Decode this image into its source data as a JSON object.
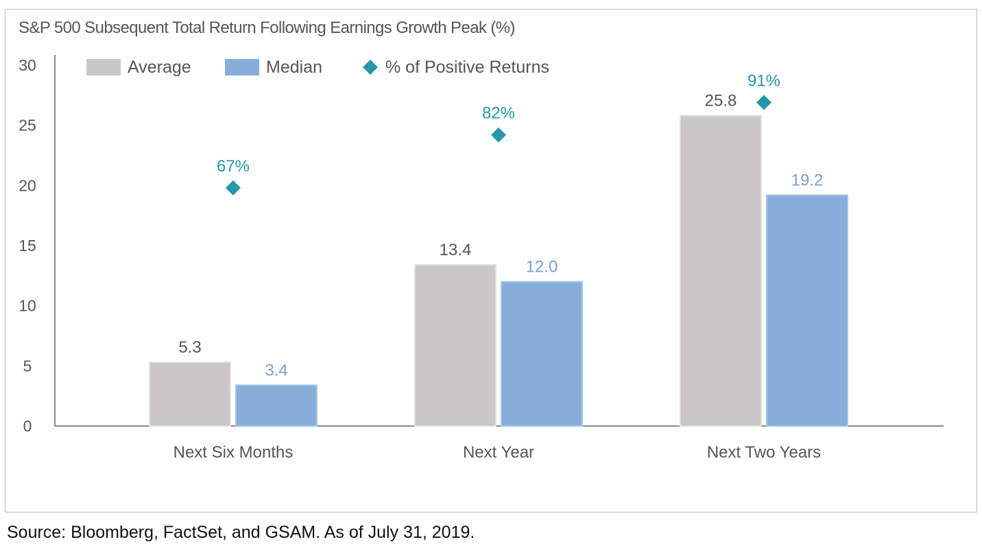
{
  "chart_data": {
    "type": "bar",
    "title": "S&P 500 Subsequent Total Return Following Earnings Growth Peak (%)",
    "categories": [
      "Next Six Months",
      "Next Year",
      "Next Two Years"
    ],
    "series": [
      {
        "name": "Average",
        "kind": "bar",
        "color": "#c9c7c8",
        "values": [
          5.3,
          13.4,
          25.8
        ],
        "labels": [
          "5.3",
          "13.4",
          "25.8"
        ],
        "label_color": "#555555"
      },
      {
        "name": "Median",
        "kind": "bar",
        "color": "#86aed9",
        "values": [
          3.4,
          12.0,
          19.2
        ],
        "labels": [
          "3.4",
          "12.0",
          "19.2"
        ],
        "label_color": "#7a9fcf"
      },
      {
        "name": "% of Positive Returns",
        "kind": "marker",
        "color": "#2597a8",
        "percent": [
          67,
          82,
          91
        ],
        "plot_values": [
          19.8,
          24.2,
          26.9
        ],
        "labels": [
          "67%",
          "82%",
          "91%"
        ],
        "label_color": "#2597a8"
      }
    ],
    "yticks": [
      "0",
      "5",
      "10",
      "15",
      "20",
      "25",
      "30"
    ],
    "ylim": [
      0,
      30
    ],
    "legend": "top-left",
    "xlabel": "",
    "ylabel": ""
  },
  "footer": {
    "source": "Source: Bloomberg, FactSet, and GSAM. As of July 31, 2019."
  }
}
